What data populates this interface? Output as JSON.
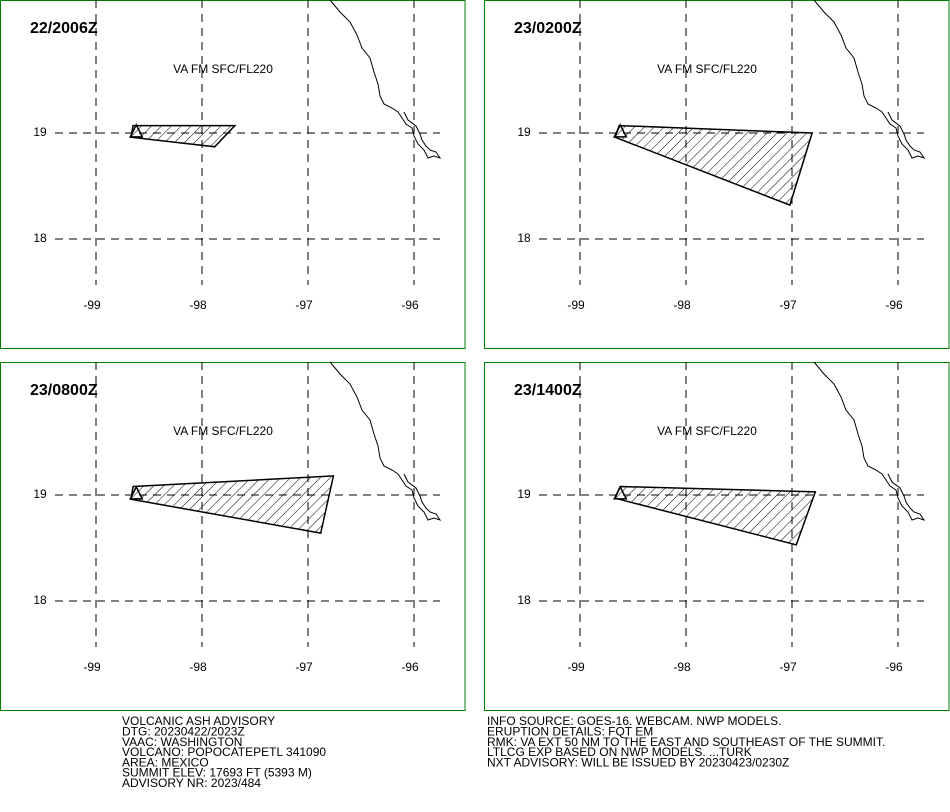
{
  "panels": [
    {
      "time": "22/2006Z",
      "label": "VA FM SFC/FL220",
      "polygon": {
        "lon": [
          -98.65,
          -97.69,
          -97.88,
          -98.67
        ],
        "lat": [
          19.07,
          19.07,
          18.87,
          18.96
        ]
      }
    },
    {
      "time": "23/0200Z",
      "label": "VA FM SFC/FL220",
      "polygon": {
        "lon": [
          -98.63,
          -96.81,
          -97.02,
          -98.67
        ],
        "lat": [
          19.07,
          19.0,
          18.32,
          18.96
        ]
      }
    },
    {
      "time": "23/0800Z",
      "label": "VA FM SFC/FL220",
      "polygon": {
        "lon": [
          -98.65,
          -96.76,
          -96.88,
          -98.67
        ],
        "lat": [
          19.08,
          19.18,
          18.64,
          18.96
        ]
      }
    },
    {
      "time": "23/1400Z",
      "label": "VA FM SFC/FL220",
      "polygon": {
        "lon": [
          -98.62,
          -96.78,
          -96.96,
          -98.67
        ],
        "lat": [
          19.08,
          19.03,
          18.53,
          18.97
        ]
      }
    }
  ],
  "lon_ticks": [
    -99,
    -98,
    -97,
    -96
  ],
  "lat_ticks": [
    19,
    18
  ],
  "volcano": {
    "lon": -98.62,
    "lat": 19.02
  },
  "advisory_left": [
    "VOLCANIC ASH ADVISORY",
    "DTG: 20230422/2023Z",
    "VAAC: WASHINGTON",
    "VOLCANO: POPOCATEPETL 341090",
    "AREA: MEXICO",
    "SUMMIT ELEV: 17693 FT (5393 M)",
    "ADVISORY NR: 2023/484"
  ],
  "advisory_right": [
    "INFO SOURCE: GOES-16. WEBCAM. NWP MODELS.",
    "ERUPTION DETAILS: FQT EM",
    "RMK: VA EXT 50 NM TO THE EAST AND SOUTHEAST OF THE SUMMIT.",
    "LTLCG EXP BASED ON NWP MODELS. ...TURK",
    "NXT ADVISORY: WILL BE ISSUED BY 20230423/0230Z"
  ]
}
